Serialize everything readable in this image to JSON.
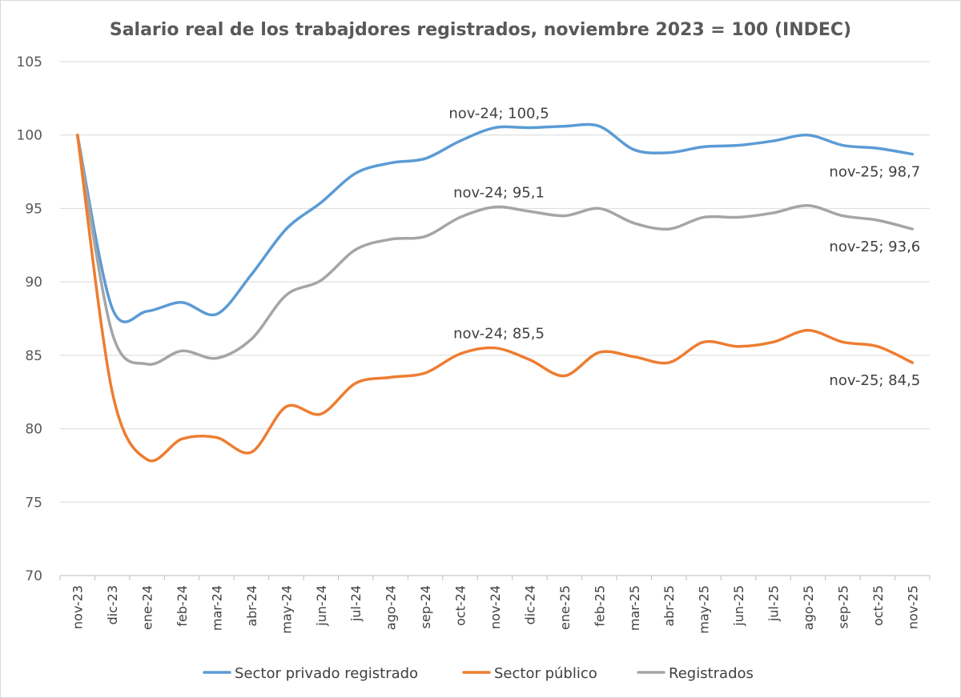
{
  "chart_data": {
    "type": "line",
    "title": "Salario real de los trabajdores registrados, noviembre 2023 = 100 (INDEC)",
    "xlabel": "",
    "ylabel": "",
    "ylim": [
      70,
      105
    ],
    "yticks": [
      70,
      75,
      80,
      85,
      90,
      95,
      100,
      105
    ],
    "grid": true,
    "legend_position": "bottom",
    "categories": [
      "nov-23",
      "dic-23",
      "ene-24",
      "feb-24",
      "mar-24",
      "abr-24",
      "may-24",
      "jun-24",
      "jul-24",
      "ago-24",
      "sep-24",
      "oct-24",
      "nov-24",
      "dic-24",
      "ene-25",
      "feb-25",
      "mar-25",
      "abr-25",
      "may-25",
      "jun-25",
      "jul-25",
      "ago-25",
      "sep-25",
      "oct-25",
      "nov-25"
    ],
    "series": [
      {
        "name": "Sector privado registrado",
        "color": "#5b9bd5",
        "values": [
          100,
          88.2,
          88.0,
          88.6,
          87.8,
          90.5,
          93.6,
          95.4,
          97.4,
          98.1,
          98.4,
          99.6,
          100.5,
          100.5,
          100.6,
          100.6,
          99.0,
          98.8,
          99.2,
          99.3,
          99.6,
          100.0,
          99.3,
          99.1,
          98.7
        ]
      },
      {
        "name": "Sector público",
        "color": "#ed7d31",
        "values": [
          100,
          82.5,
          77.9,
          79.3,
          79.4,
          78.4,
          81.5,
          81.0,
          83.1,
          83.5,
          83.8,
          85.1,
          85.5,
          84.7,
          83.6,
          85.2,
          84.9,
          84.5,
          85.9,
          85.6,
          85.9,
          86.7,
          85.9,
          85.6,
          84.5
        ]
      },
      {
        "name": "Registrados",
        "color": "#a5a5a5",
        "values": [
          100,
          86.5,
          84.4,
          85.3,
          84.8,
          86.1,
          89.1,
          90.1,
          92.2,
          92.9,
          93.1,
          94.4,
          95.1,
          94.8,
          94.5,
          95.0,
          94.0,
          93.6,
          94.4,
          94.4,
          94.7,
          95.2,
          94.5,
          94.2,
          93.6
        ]
      }
    ],
    "annotations": [
      {
        "series": 0,
        "index": 12,
        "text": "nov-24; 100,5"
      },
      {
        "series": 0,
        "index": 24,
        "text": "nov-25; 98,7"
      },
      {
        "series": 2,
        "index": 12,
        "text": "nov-24; 95,1"
      },
      {
        "series": 2,
        "index": 24,
        "text": "nov-25; 93,6"
      },
      {
        "series": 1,
        "index": 12,
        "text": "nov-24; 85,5"
      },
      {
        "series": 1,
        "index": 24,
        "text": "nov-25; 84,5"
      }
    ]
  }
}
